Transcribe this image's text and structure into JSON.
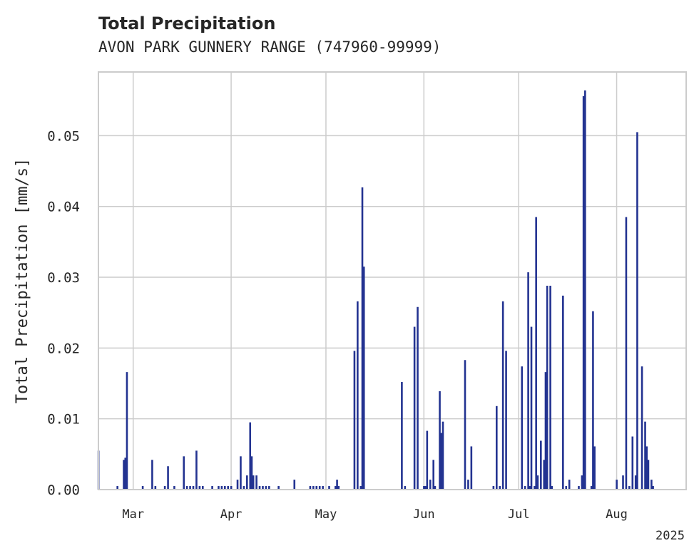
{
  "chart_data": {
    "type": "bar",
    "title": "Total Precipitation",
    "subtitle": "AVON PARK GUNNERY RANGE (747960-99999)",
    "xlabel": "",
    "ylabel": "Total Precipitation [mm/s]",
    "year_label": "2025",
    "ylim": [
      0,
      0.059
    ],
    "xlim": [
      "2025-02-18",
      "2025-08-23"
    ],
    "grid": true,
    "color": "#233391",
    "x_ticks": [
      {
        "date": "2025-03-01",
        "label": "Mar"
      },
      {
        "date": "2025-04-01",
        "label": "Apr"
      },
      {
        "date": "2025-05-01",
        "label": "May"
      },
      {
        "date": "2025-06-01",
        "label": "Jun"
      },
      {
        "date": "2025-07-01",
        "label": "Jul"
      },
      {
        "date": "2025-08-01",
        "label": "Aug"
      }
    ],
    "y_ticks": [
      {
        "value": 0.0,
        "label": "0.00"
      },
      {
        "value": 0.01,
        "label": "0.01"
      },
      {
        "value": 0.02,
        "label": "0.02"
      },
      {
        "value": 0.03,
        "label": "0.03"
      },
      {
        "value": 0.04,
        "label": "0.04"
      },
      {
        "value": 0.05,
        "label": "0.05"
      }
    ],
    "points": [
      [
        "2025-02-18",
        0.0055
      ],
      [
        "2025-02-24",
        0.0005
      ],
      [
        "2025-02-26",
        0.0042
      ],
      [
        "2025-02-26T12:00",
        0.0045
      ],
      [
        "2025-02-27",
        0.0166
      ],
      [
        "2025-03-04",
        0.0005
      ],
      [
        "2025-03-07",
        0.0042
      ],
      [
        "2025-03-08",
        0.0005
      ],
      [
        "2025-03-11",
        0.0005
      ],
      [
        "2025-03-12",
        0.0033
      ],
      [
        "2025-03-14",
        0.0005
      ],
      [
        "2025-03-17",
        0.0047
      ],
      [
        "2025-03-18",
        0.0005
      ],
      [
        "2025-03-19",
        0.0005
      ],
      [
        "2025-03-20",
        0.0005
      ],
      [
        "2025-03-21",
        0.0055
      ],
      [
        "2025-03-22",
        0.0005
      ],
      [
        "2025-03-23",
        0.0005
      ],
      [
        "2025-03-26",
        0.0005
      ],
      [
        "2025-03-28",
        0.0005
      ],
      [
        "2025-03-29",
        0.0005
      ],
      [
        "2025-03-30",
        0.0005
      ],
      [
        "2025-03-31",
        0.0005
      ],
      [
        "2025-04-01",
        0.0005
      ],
      [
        "2025-04-03",
        0.0014
      ],
      [
        "2025-04-04",
        0.0047
      ],
      [
        "2025-04-05",
        0.0005
      ],
      [
        "2025-04-06",
        0.002
      ],
      [
        "2025-04-07",
        0.0095
      ],
      [
        "2025-04-07T12:00",
        0.0047
      ],
      [
        "2025-04-08",
        0.002
      ],
      [
        "2025-04-09",
        0.002
      ],
      [
        "2025-04-10",
        0.0005
      ],
      [
        "2025-04-11",
        0.0005
      ],
      [
        "2025-04-12",
        0.0005
      ],
      [
        "2025-04-13",
        0.0005
      ],
      [
        "2025-04-16",
        0.0005
      ],
      [
        "2025-04-21",
        0.0014
      ],
      [
        "2025-04-26",
        0.0005
      ],
      [
        "2025-04-27",
        0.0005
      ],
      [
        "2025-04-28",
        0.0005
      ],
      [
        "2025-04-29",
        0.0005
      ],
      [
        "2025-04-30",
        0.0005
      ],
      [
        "2025-05-02",
        0.0005
      ],
      [
        "2025-05-04",
        0.0005
      ],
      [
        "2025-05-05",
        0.0005
      ],
      [
        "2025-05-04T12:00",
        0.0014
      ],
      [
        "2025-05-10",
        0.0196
      ],
      [
        "2025-05-11",
        0.0266
      ],
      [
        "2025-05-12",
        0.0005
      ],
      [
        "2025-05-12T12:00",
        0.0427
      ],
      [
        "2025-05-13",
        0.0315
      ],
      [
        "2025-05-25",
        0.0152
      ],
      [
        "2025-05-26",
        0.0005
      ],
      [
        "2025-05-29",
        0.023
      ],
      [
        "2025-05-30",
        0.0258
      ],
      [
        "2025-06-01",
        0.0005
      ],
      [
        "2025-06-01T12:00",
        0.0005
      ],
      [
        "2025-06-02",
        0.0083
      ],
      [
        "2025-06-03",
        0.0014
      ],
      [
        "2025-06-04",
        0.0042
      ],
      [
        "2025-06-04T12:00",
        0.0005
      ],
      [
        "2025-06-06",
        0.0139
      ],
      [
        "2025-06-06T12:00",
        0.008
      ],
      [
        "2025-06-07",
        0.0096
      ],
      [
        "2025-06-14",
        0.0183
      ],
      [
        "2025-06-15",
        0.0014
      ],
      [
        "2025-06-16",
        0.0061
      ],
      [
        "2025-06-23",
        0.0005
      ],
      [
        "2025-06-24",
        0.0118
      ],
      [
        "2025-06-25",
        0.0005
      ],
      [
        "2025-06-26",
        0.0266
      ],
      [
        "2025-06-27",
        0.0196
      ],
      [
        "2025-07-02",
        0.0174
      ],
      [
        "2025-07-03",
        0.0005
      ],
      [
        "2025-07-04",
        0.0307
      ],
      [
        "2025-07-04T12:00",
        0.0005
      ],
      [
        "2025-07-05",
        0.023
      ],
      [
        "2025-07-06",
        0.0005
      ],
      [
        "2025-07-06T12:00",
        0.0385
      ],
      [
        "2025-07-07",
        0.002
      ],
      [
        "2025-07-08",
        0.0069
      ],
      [
        "2025-07-09",
        0.0042
      ],
      [
        "2025-07-09T12:00",
        0.0166
      ],
      [
        "2025-07-10",
        0.0288
      ],
      [
        "2025-07-11",
        0.0288
      ],
      [
        "2025-07-11T12:00",
        0.0005
      ],
      [
        "2025-07-15",
        0.0274
      ],
      [
        "2025-07-16",
        0.0005
      ],
      [
        "2025-07-17",
        0.0014
      ],
      [
        "2025-07-20",
        0.0005
      ],
      [
        "2025-07-21",
        0.002
      ],
      [
        "2025-07-21T12:00",
        0.0556
      ],
      [
        "2025-07-22",
        0.0564
      ],
      [
        "2025-07-24",
        0.0005
      ],
      [
        "2025-07-24T12:00",
        0.0252
      ],
      [
        "2025-07-25",
        0.0061
      ],
      [
        "2025-08-01",
        0.0014
      ],
      [
        "2025-08-03",
        0.002
      ],
      [
        "2025-08-04",
        0.0385
      ],
      [
        "2025-08-05",
        0.0005
      ],
      [
        "2025-08-06",
        0.0075
      ],
      [
        "2025-08-07",
        0.002
      ],
      [
        "2025-08-07T12:00",
        0.0505
      ],
      [
        "2025-08-09",
        0.0174
      ],
      [
        "2025-08-10",
        0.0096
      ],
      [
        "2025-08-10T12:00",
        0.0061
      ],
      [
        "2025-08-11",
        0.0042
      ],
      [
        "2025-08-12",
        0.0014
      ],
      [
        "2025-08-12T12:00",
        0.0005
      ]
    ]
  }
}
